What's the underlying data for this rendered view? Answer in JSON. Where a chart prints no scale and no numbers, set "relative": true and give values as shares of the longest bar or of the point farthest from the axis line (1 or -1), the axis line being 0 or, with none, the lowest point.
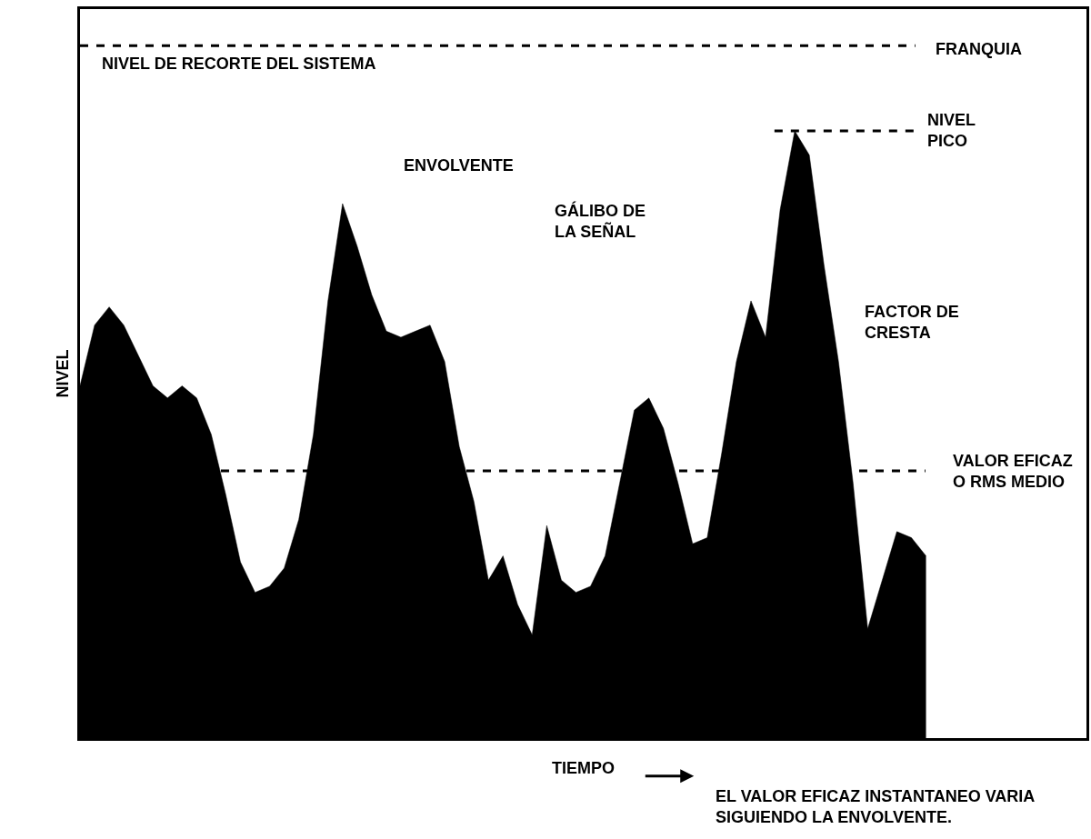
{
  "chart_data": {
    "type": "area",
    "relative": true,
    "xlabel": "TIEMPO",
    "ylabel": "NIVEL",
    "categories": [
      null,
      null,
      null,
      null,
      null,
      null,
      null,
      null,
      null,
      null,
      null,
      null,
      null,
      null,
      null,
      null,
      null,
      null,
      null,
      null,
      null,
      null,
      null,
      null,
      null,
      null,
      null,
      null,
      null,
      null,
      null,
      null,
      null,
      null,
      null,
      null,
      null,
      null,
      null,
      null,
      null,
      null,
      null,
      null,
      null,
      null,
      null,
      null,
      null,
      null,
      null,
      null,
      null,
      null,
      null,
      null,
      null,
      null,
      null,
      null,
      null,
      null,
      null,
      null,
      null,
      null,
      null,
      null,
      null,
      null
    ],
    "series": [
      {
        "color": "#000000",
        "values": [
          0.58,
          0.68,
          0.71,
          0.68,
          0.63,
          0.58,
          0.56,
          0.58,
          0.56,
          0.5,
          0.4,
          0.29,
          0.24,
          0.25,
          0.28,
          0.36,
          0.5,
          0.72,
          0.88,
          0.81,
          0.73,
          0.67,
          0.66,
          0.67,
          0.68,
          0.62,
          0.48,
          0.39,
          0.26,
          0.3,
          0.22,
          0.17,
          0.35,
          0.26,
          0.24,
          0.25,
          0.3,
          0.42,
          0.54,
          0.56,
          0.51,
          0.42,
          0.32,
          0.33,
          0.47,
          0.62,
          0.72,
          0.66,
          0.87,
          1.0,
          0.96,
          0.78,
          0.62,
          0.42,
          0.18,
          0.26,
          0.34,
          0.33,
          0.3,
          null,
          null,
          null,
          null,
          null,
          null,
          null,
          null,
          null,
          null,
          null
        ]
      }
    ],
    "ref_lines": [
      {
        "axis": "y",
        "value": 1.14,
        "label": "NIVEL DE RECORTE DEL SISTEMA",
        "color": "#000000",
        "line_style": "dashed"
      },
      {
        "axis": "y",
        "value": 1.0,
        "label": "NIVEL\nPICO",
        "color": "#000000",
        "line_style": "dashed"
      },
      {
        "axis": "y",
        "value": 0.44,
        "label": "VALOR EFICAZ\nO RMS MEDIO",
        "color": "#000000",
        "line_style": "dashed"
      }
    ],
    "annotations": [
      "ENVOLVENTE",
      "GÁLIBO DE\nLA SEÑAL",
      "FRANQUIA",
      "FACTOR DE\nCRESTA",
      "EL VALOR EFICAZ INSTANTANEO VARIA\nSIGUIENDO LA ENVOLVENTE."
    ]
  }
}
